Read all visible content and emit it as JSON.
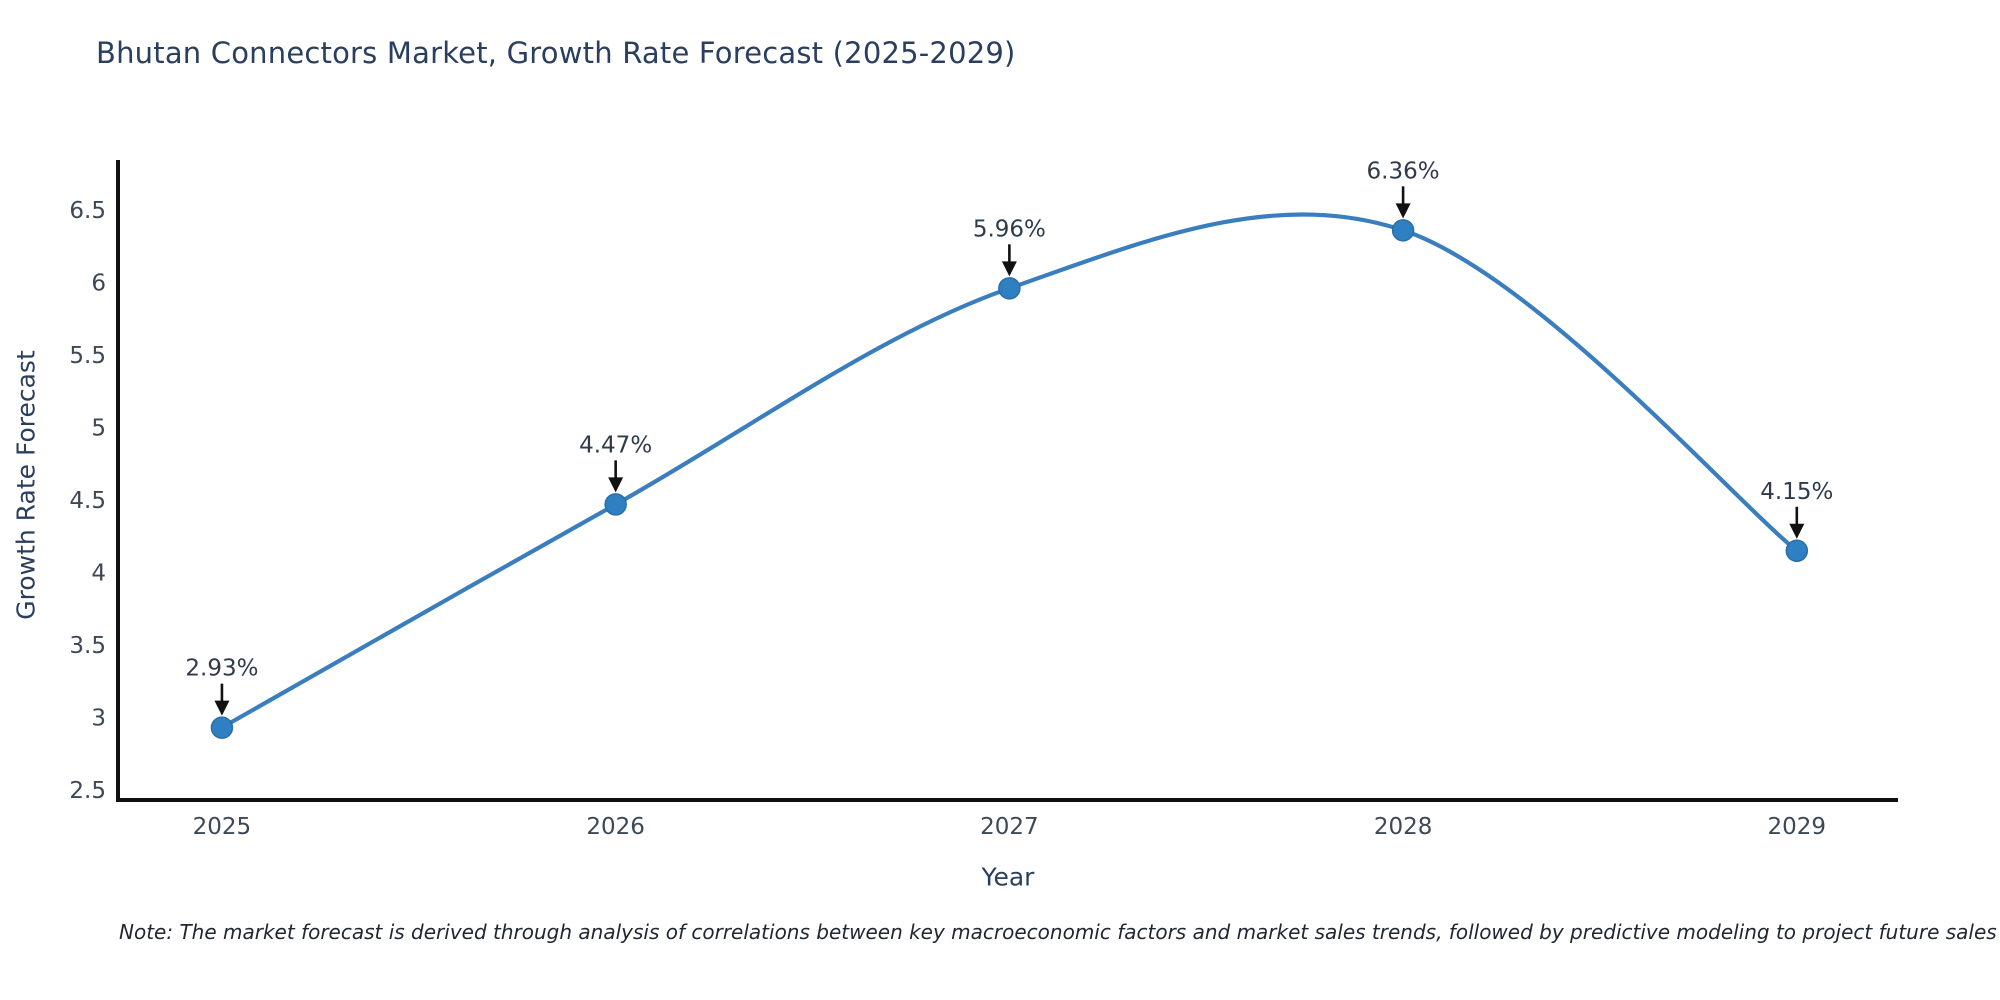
{
  "title": "Bhutan Connectors Market, Growth Rate Forecast (2025-2029)",
  "note": "Note: The market forecast is derived through analysis of correlations between key macroeconomic factors and market sales trends, followed by predictive modeling to project future sales",
  "chart_data": {
    "type": "line",
    "title": "Bhutan Connectors Market, Growth Rate Forecast (2025-2029)",
    "xlabel": "Year",
    "ylabel": "Growth Rate Forecast",
    "x": [
      2025,
      2026,
      2027,
      2028,
      2029
    ],
    "values": [
      2.93,
      4.47,
      5.96,
      6.36,
      4.15
    ],
    "point_labels": [
      "2.93%",
      "4.47%",
      "5.96%",
      "6.36%",
      "4.15%"
    ],
    "xtick_labels": [
      "2025",
      "2026",
      "2027",
      "2028",
      "2029"
    ],
    "ytick_values": [
      2.5,
      3,
      3.5,
      4,
      4.5,
      5,
      5.5,
      6,
      6.5
    ],
    "ytick_labels": [
      "2.5",
      "3",
      "3.5",
      "4",
      "4.5",
      "5",
      "5.5",
      "6",
      "6.5"
    ],
    "xlim": [
      2024.736,
      2029.257
    ],
    "ylim": [
      2.431,
      6.845
    ],
    "line_shape": "spline",
    "grid": false,
    "legend": "none",
    "colors": {
      "line": "#3a7ebf",
      "marker": "#2f80c2",
      "marker_edge": "#2a6ea8",
      "axis": "#111111",
      "title_text": "#2a3f5f",
      "axis_title_text": "#2a3f5f",
      "tick_text": "#3d4857",
      "annotation_text": "#2f3b4a",
      "arrow": "#111111",
      "note_text": "#202733",
      "background": "#ffffff"
    }
  }
}
